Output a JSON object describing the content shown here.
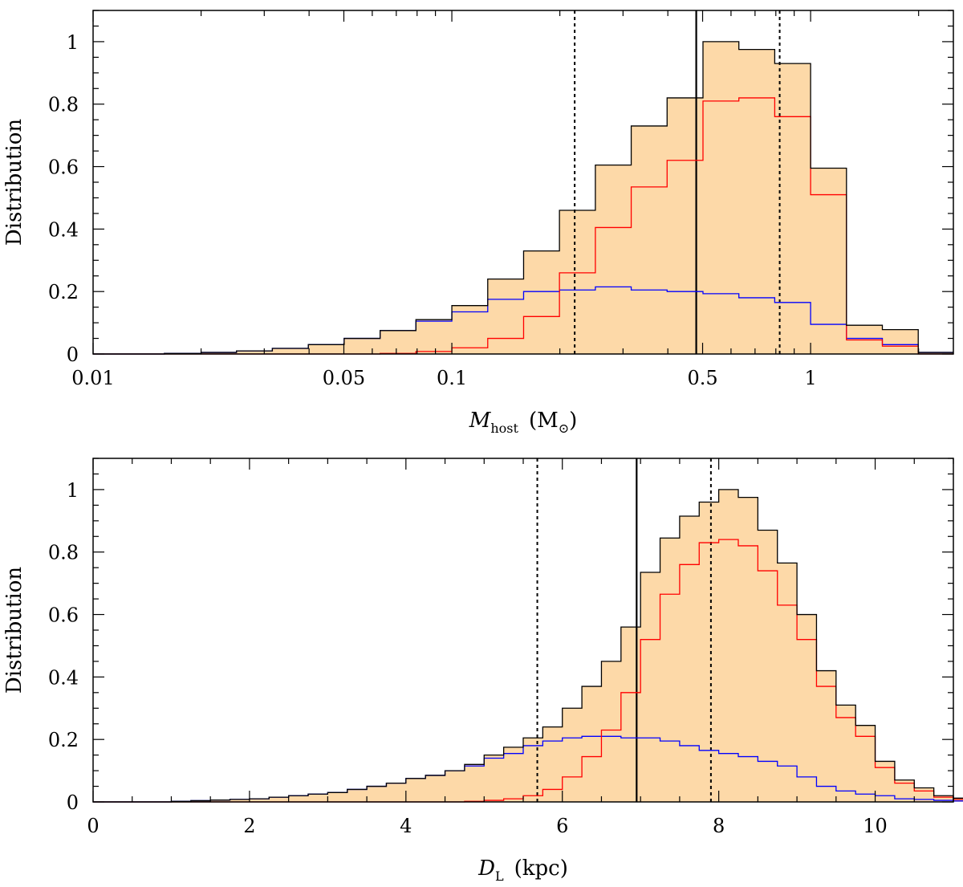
{
  "chart_data": [
    {
      "type": "histogram",
      "xscale": "log",
      "xlim": [
        0.01,
        2.5
      ],
      "ylim": [
        0,
        1.1
      ],
      "ylabel": "Distribution",
      "xlabel": {
        "symbol": "M",
        "subscript": "host",
        "unit_open": "(M",
        "unit_sub": "⊙",
        "unit_close": ")"
      },
      "x_ticks": [
        {
          "v": 0.01,
          "label": "0.01"
        },
        {
          "v": 0.05,
          "label": "0.05"
        },
        {
          "v": 0.1,
          "label": "0.1"
        },
        {
          "v": 0.5,
          "label": "0.5"
        },
        {
          "v": 1,
          "label": "1"
        }
      ],
      "y_ticks": [
        {
          "v": 0,
          "label": "0"
        },
        {
          "v": 0.2,
          "label": "0.2"
        },
        {
          "v": 0.4,
          "label": "0.4"
        },
        {
          "v": 0.6,
          "label": "0.6"
        },
        {
          "v": 0.8,
          "label": "0.8"
        },
        {
          "v": 1,
          "label": "1"
        }
      ],
      "bin_edges": [
        0.01,
        0.0126,
        0.0158,
        0.02,
        0.0251,
        0.0316,
        0.0398,
        0.0501,
        0.0631,
        0.0794,
        0.1,
        0.1259,
        0.1585,
        0.1995,
        0.2512,
        0.3162,
        0.3981,
        0.5012,
        0.631,
        0.7943,
        1.0,
        1.2589,
        1.5849,
        1.9953,
        2.5
      ],
      "series": [
        {
          "name": "total",
          "color": "#000000",
          "fill": "#fdd9a8",
          "values": [
            0,
            0,
            0.002,
            0.005,
            0.01,
            0.018,
            0.03,
            0.05,
            0.075,
            0.11,
            0.155,
            0.24,
            0.33,
            0.46,
            0.605,
            0.73,
            0.82,
            1.0,
            0.975,
            0.93,
            0.595,
            0.092,
            0.078,
            0.005
          ]
        },
        {
          "name": "disk",
          "color": "#ff0000",
          "values": [
            0,
            0,
            0,
            0,
            0,
            0,
            0,
            0,
            0.002,
            0.008,
            0.02,
            0.05,
            0.12,
            0.26,
            0.405,
            0.535,
            0.62,
            0.81,
            0.82,
            0.76,
            0.51,
            0.045,
            0.025,
            0
          ]
        },
        {
          "name": "bulge",
          "color": "#0000ff",
          "values": [
            0,
            0,
            0.002,
            0.005,
            0.01,
            0.018,
            0.03,
            0.05,
            0.075,
            0.105,
            0.135,
            0.175,
            0.2,
            0.205,
            0.215,
            0.205,
            0.2,
            0.193,
            0.18,
            0.165,
            0.095,
            0.05,
            0.03,
            0.005
          ]
        }
      ],
      "median": 0.48,
      "interval": [
        0.22,
        0.82
      ]
    },
    {
      "type": "histogram",
      "xscale": "linear",
      "xlim": [
        0,
        11
      ],
      "ylim": [
        0,
        1.1
      ],
      "ylabel": "Distribution",
      "xlabel": {
        "symbol": "D",
        "subscript": "L",
        "unit": "(kpc)"
      },
      "x_ticks": [
        {
          "v": 0,
          "label": "0"
        },
        {
          "v": 2,
          "label": "2"
        },
        {
          "v": 4,
          "label": "4"
        },
        {
          "v": 6,
          "label": "6"
        },
        {
          "v": 8,
          "label": "8"
        },
        {
          "v": 10,
          "label": "10"
        }
      ],
      "y_ticks": [
        {
          "v": 0,
          "label": "0"
        },
        {
          "v": 0.2,
          "label": "0.2"
        },
        {
          "v": 0.4,
          "label": "0.4"
        },
        {
          "v": 0.6,
          "label": "0.6"
        },
        {
          "v": 0.8,
          "label": "0.8"
        },
        {
          "v": 1,
          "label": "1"
        }
      ],
      "bin_start": 0,
      "bin_width": 0.25,
      "series": [
        {
          "name": "total",
          "color": "#000000",
          "fill": "#fdd9a8",
          "values": [
            0,
            0,
            0,
            0,
            0.002,
            0.004,
            0.006,
            0.008,
            0.01,
            0.015,
            0.02,
            0.025,
            0.03,
            0.04,
            0.05,
            0.06,
            0.075,
            0.085,
            0.1,
            0.12,
            0.15,
            0.175,
            0.205,
            0.24,
            0.3,
            0.37,
            0.45,
            0.56,
            0.735,
            0.845,
            0.915,
            0.96,
            1.0,
            0.975,
            0.87,
            0.765,
            0.6,
            0.42,
            0.31,
            0.245,
            0.13,
            0.07,
            0.045,
            0.02,
            0.012,
            0.005,
            0.003,
            0.002,
            0.002,
            0.001,
            0.001,
            0,
            0,
            0
          ]
        },
        {
          "name": "disk",
          "color": "#ff0000",
          "values": [
            0,
            0,
            0,
            0,
            0,
            0,
            0,
            0,
            0,
            0,
            0,
            0,
            0,
            0,
            0,
            0,
            0,
            0,
            0,
            0.002,
            0.005,
            0.01,
            0.02,
            0.04,
            0.08,
            0.145,
            0.23,
            0.35,
            0.52,
            0.665,
            0.76,
            0.83,
            0.84,
            0.82,
            0.74,
            0.63,
            0.52,
            0.37,
            0.27,
            0.21,
            0.11,
            0.06,
            0.035,
            0.015,
            0.008,
            0.003,
            0.002,
            0.001,
            0,
            0,
            0,
            0,
            0,
            0
          ]
        },
        {
          "name": "bulge",
          "color": "#0000ff",
          "values": [
            0,
            0,
            0,
            0,
            0.002,
            0.004,
            0.006,
            0.008,
            0.01,
            0.015,
            0.02,
            0.025,
            0.03,
            0.04,
            0.05,
            0.06,
            0.075,
            0.085,
            0.1,
            0.115,
            0.14,
            0.155,
            0.18,
            0.195,
            0.205,
            0.21,
            0.21,
            0.205,
            0.205,
            0.195,
            0.18,
            0.165,
            0.155,
            0.145,
            0.13,
            0.115,
            0.08,
            0.05,
            0.035,
            0.025,
            0.02,
            0.01,
            0.008,
            0.005,
            0.003,
            0.002,
            0.001,
            0.001,
            0,
            0,
            0,
            0,
            0,
            0
          ]
        }
      ],
      "median": 6.95,
      "interval": [
        5.68,
        7.9
      ]
    }
  ]
}
